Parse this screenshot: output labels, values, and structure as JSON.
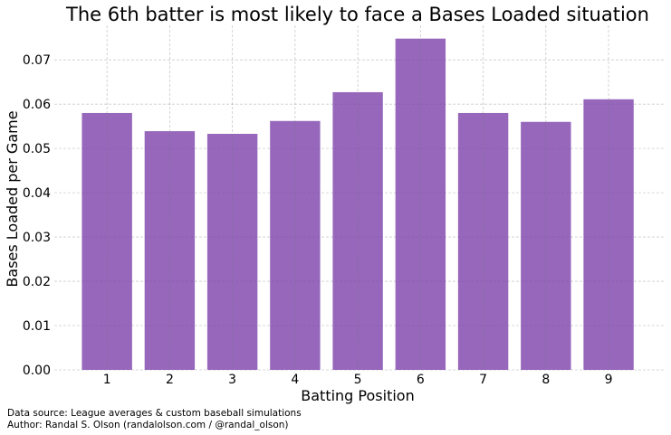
{
  "chart_data": {
    "type": "bar",
    "title": "The 6th batter is most likely to face a Bases Loaded situation",
    "xlabel": "Batting Position",
    "ylabel": "Bases Loaded per Game",
    "categories": [
      "1",
      "2",
      "3",
      "4",
      "5",
      "6",
      "7",
      "8",
      "9"
    ],
    "values": [
      0.058,
      0.0539,
      0.0533,
      0.0562,
      0.0627,
      0.0748,
      0.058,
      0.056,
      0.0611
    ],
    "yticks": [
      "0.00",
      "0.01",
      "0.02",
      "0.03",
      "0.04",
      "0.05",
      "0.06",
      "0.07"
    ],
    "ylim": [
      0,
      0.0778
    ],
    "xlim": [
      0.16,
      9.88
    ],
    "grid": true,
    "bar_color": "#7f46ac",
    "footer": [
      "Data source: League averages & custom baseball simulations",
      "Author: Randal S. Olson (randalolson.com / @randal_olson)"
    ]
  }
}
